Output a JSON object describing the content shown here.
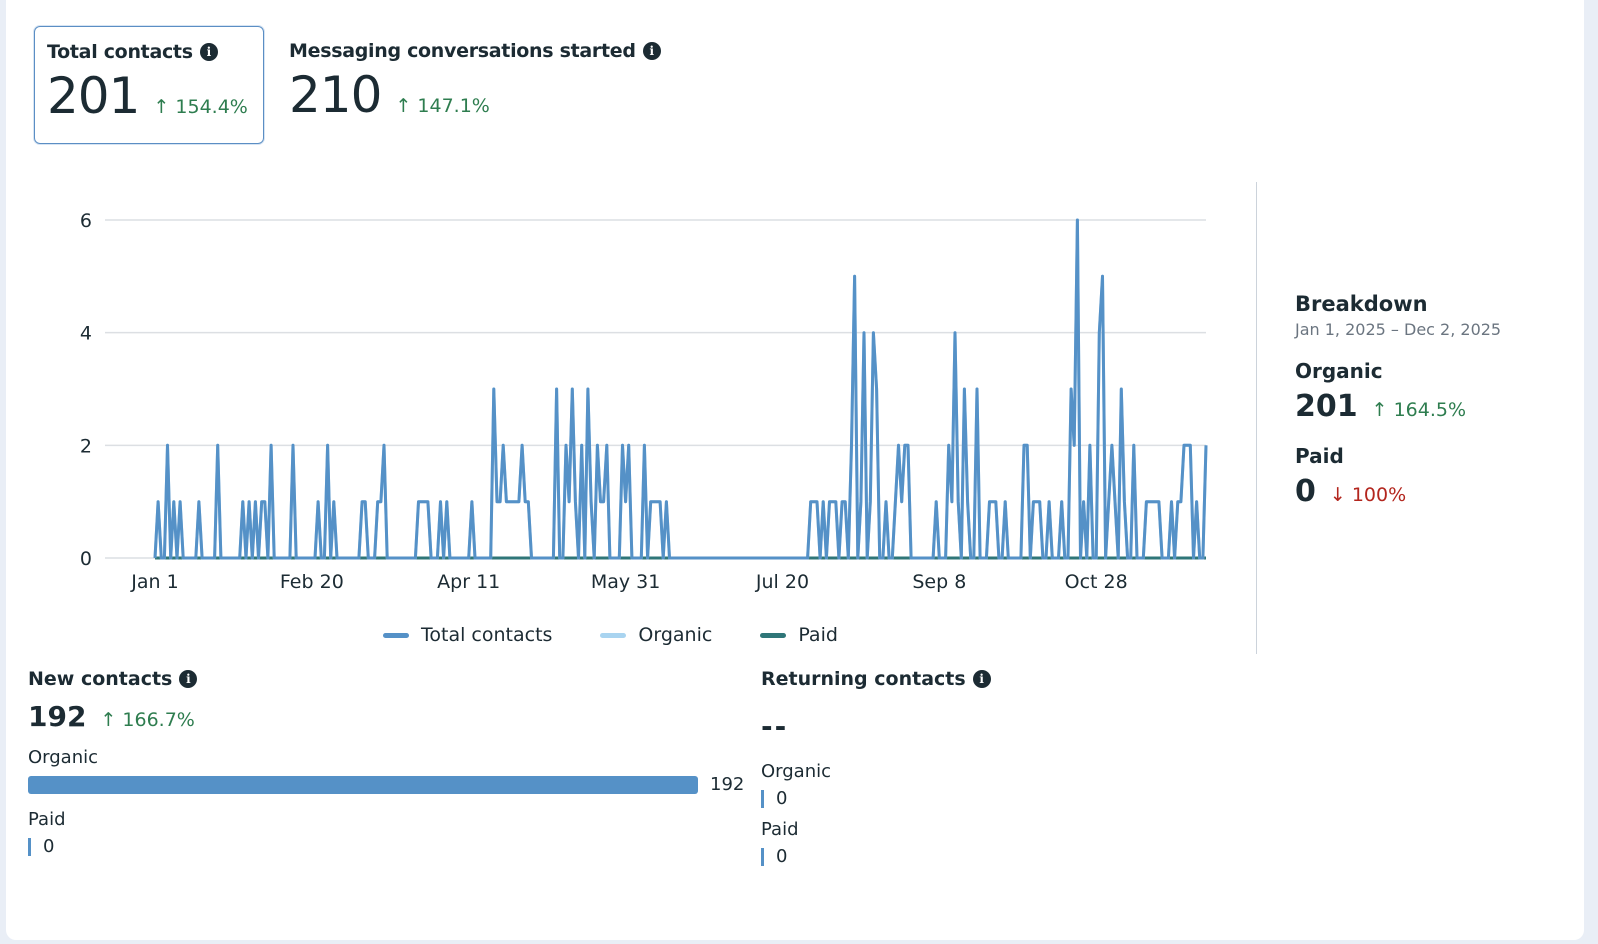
{
  "metrics": [
    {
      "title": "Total contacts",
      "value": "201",
      "delta": "↑ 154.4%",
      "direction": "up",
      "selected": true
    },
    {
      "title": "Messaging conversations started",
      "value": "210",
      "delta": "↑ 147.1%",
      "direction": "up",
      "selected": false
    }
  ],
  "icons": {
    "info": "i"
  },
  "legend": [
    {
      "label": "Total contacts",
      "color": "#5591c7"
    },
    {
      "label": "Organic",
      "color": "#a9d4f0"
    },
    {
      "label": "Paid",
      "color": "#2f7678"
    }
  ],
  "breakdown": {
    "title": "Breakdown",
    "date_range": "Jan 1, 2025 – Dec 2, 2025",
    "organic": {
      "label": "Organic",
      "value": "201",
      "delta": "↑ 164.5%"
    },
    "paid": {
      "label": "Paid",
      "value": "0",
      "delta": "↓ 100%"
    }
  },
  "new_contacts": {
    "title": "New contacts",
    "value": "192",
    "delta": "↑ 166.7%",
    "organic": {
      "label": "Organic",
      "value": "192",
      "fraction": 1.0
    },
    "paid": {
      "label": "Paid",
      "value": "0",
      "fraction": 0
    }
  },
  "returning_contacts": {
    "title": "Returning contacts",
    "value": "--",
    "organic": {
      "label": "Organic",
      "value": "0"
    },
    "paid": {
      "label": "Paid",
      "value": "0"
    }
  },
  "chart_data": {
    "type": "line",
    "title": "",
    "xlabel": "",
    "ylabel": "",
    "x_start": "2025-01-01",
    "x_end": "2025-12-02",
    "x_tick_labels": [
      "Jan 1",
      "Feb 20",
      "Apr 11",
      "May 31",
      "Jul 20",
      "Sep 8",
      "Oct 28"
    ],
    "x_tick_days": [
      0,
      50,
      100,
      150,
      200,
      250,
      300
    ],
    "ylim": [
      0,
      6
    ],
    "y_ticks": [
      0,
      2,
      4,
      6
    ],
    "grid": true,
    "legend_position": "bottom-center",
    "series": [
      {
        "name": "Total contacts",
        "color": "#5591c7",
        "points": [
          [
            1,
            1
          ],
          [
            4,
            2
          ],
          [
            6,
            1
          ],
          [
            8,
            1
          ],
          [
            14,
            1
          ],
          [
            20,
            2
          ],
          [
            28,
            1
          ],
          [
            30,
            1
          ],
          [
            32,
            1
          ],
          [
            34,
            1
          ],
          [
            35,
            1
          ],
          [
            37,
            2
          ],
          [
            44,
            2
          ],
          [
            52,
            1
          ],
          [
            55,
            2
          ],
          [
            57,
            1
          ],
          [
            66,
            1
          ],
          [
            67,
            1
          ],
          [
            71,
            1
          ],
          [
            72,
            1
          ],
          [
            73,
            2
          ],
          [
            84,
            1
          ],
          [
            85,
            1
          ],
          [
            86,
            1
          ],
          [
            87,
            1
          ],
          [
            91,
            1
          ],
          [
            93,
            1
          ],
          [
            101,
            1
          ],
          [
            108,
            3
          ],
          [
            109,
            1
          ],
          [
            110,
            1
          ],
          [
            111,
            2
          ],
          [
            112,
            1
          ],
          [
            113,
            1
          ],
          [
            114,
            1
          ],
          [
            115,
            1
          ],
          [
            116,
            1
          ],
          [
            117,
            2
          ],
          [
            118,
            1
          ],
          [
            119,
            1
          ],
          [
            128,
            3
          ],
          [
            131,
            2
          ],
          [
            132,
            1
          ],
          [
            133,
            3
          ],
          [
            134,
            1
          ],
          [
            136,
            2
          ],
          [
            138,
            3
          ],
          [
            139,
            1
          ],
          [
            141,
            2
          ],
          [
            142,
            1
          ],
          [
            143,
            1
          ],
          [
            144,
            2
          ],
          [
            149,
            2
          ],
          [
            150,
            1
          ],
          [
            151,
            2
          ],
          [
            156,
            2
          ],
          [
            158,
            1
          ],
          [
            159,
            1
          ],
          [
            160,
            1
          ],
          [
            161,
            1
          ],
          [
            163,
            1
          ],
          [
            209,
            1
          ],
          [
            210,
            1
          ],
          [
            211,
            1
          ],
          [
            213,
            1
          ],
          [
            215,
            1
          ],
          [
            216,
            1
          ],
          [
            217,
            1
          ],
          [
            219,
            1
          ],
          [
            220,
            1
          ],
          [
            222,
            2
          ],
          [
            223,
            5
          ],
          [
            225,
            1
          ],
          [
            226,
            4
          ],
          [
            228,
            1
          ],
          [
            229,
            4
          ],
          [
            230,
            3
          ],
          [
            233,
            1
          ],
          [
            236,
            1
          ],
          [
            237,
            2
          ],
          [
            238,
            1
          ],
          [
            239,
            2
          ],
          [
            240,
            2
          ],
          [
            249,
            1
          ],
          [
            253,
            2
          ],
          [
            254,
            1
          ],
          [
            255,
            4
          ],
          [
            256,
            1
          ],
          [
            258,
            3
          ],
          [
            259,
            1
          ],
          [
            262,
            3
          ],
          [
            266,
            1
          ],
          [
            267,
            1
          ],
          [
            268,
            1
          ],
          [
            271,
            1
          ],
          [
            277,
            2
          ],
          [
            278,
            2
          ],
          [
            280,
            1
          ],
          [
            281,
            1
          ],
          [
            282,
            1
          ],
          [
            285,
            1
          ],
          [
            289,
            1
          ],
          [
            292,
            3
          ],
          [
            293,
            2
          ],
          [
            294,
            6
          ],
          [
            296,
            1
          ],
          [
            298,
            2
          ],
          [
            301,
            4
          ],
          [
            302,
            5
          ],
          [
            304,
            1
          ],
          [
            305,
            2
          ],
          [
            306,
            1
          ],
          [
            308,
            3
          ],
          [
            309,
            1
          ],
          [
            312,
            2
          ],
          [
            316,
            1
          ],
          [
            317,
            1
          ],
          [
            318,
            1
          ],
          [
            319,
            1
          ],
          [
            320,
            1
          ],
          [
            324,
            1
          ],
          [
            326,
            1
          ],
          [
            327,
            1
          ],
          [
            328,
            2
          ],
          [
            329,
            2
          ],
          [
            330,
            2
          ],
          [
            332,
            1
          ],
          [
            335,
            2
          ]
        ],
        "total_days": 336
      },
      {
        "name": "Organic",
        "color": "#a9d4f0",
        "note": "overlaps Total contacts"
      },
      {
        "name": "Paid",
        "color": "#2f7678",
        "constant_value": 0
      }
    ]
  }
}
